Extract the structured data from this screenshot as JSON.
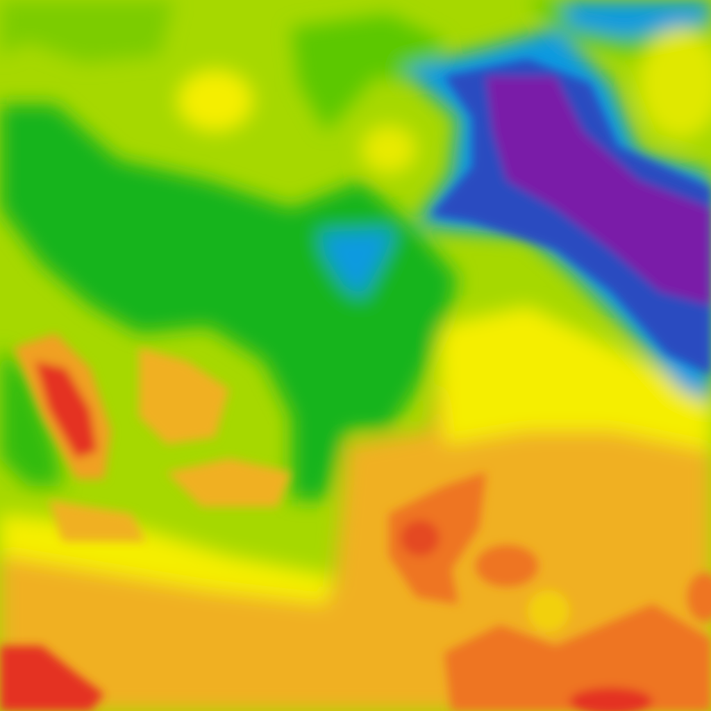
{
  "map": {
    "kind": "weather-heatmap-tile",
    "palette": {
      "purple": "#7a1aa8",
      "dark_blue": "#2a4cc0",
      "blue": "#0a9ae0",
      "green_dark": "#16b41a",
      "green": "#5cc800",
      "yellow_green": "#a6d800",
      "yellow": "#f5ee00",
      "orange_light": "#f2c010",
      "orange": "#f0a828",
      "orange_dark": "#ee7424",
      "red": "#e43020"
    }
  }
}
